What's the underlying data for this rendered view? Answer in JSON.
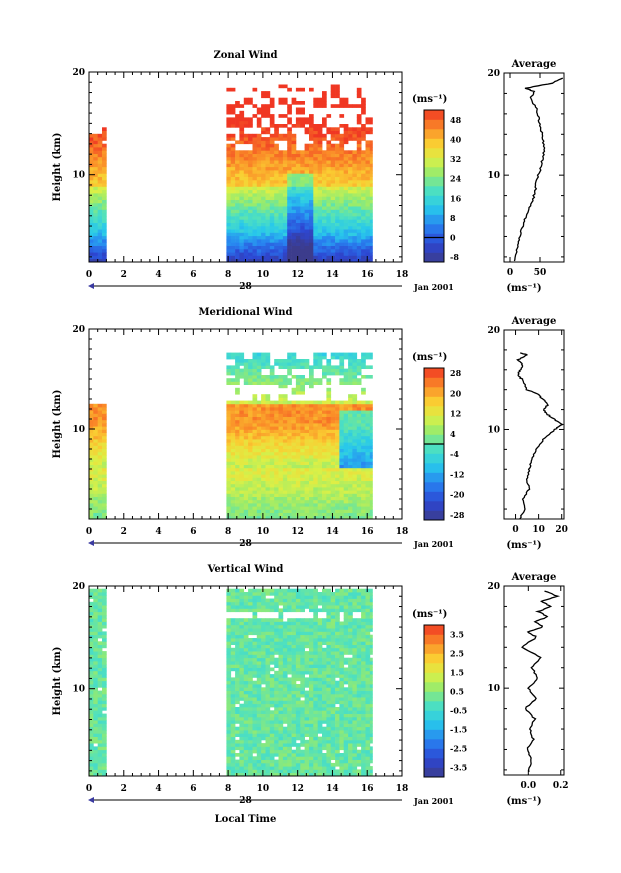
{
  "colorbar_unit": "(ms⁻¹)",
  "avg_unit": "(ms⁻¹)",
  "x_axis": {
    "date_label": "Jan 2001",
    "day_label": "28",
    "xlabel": "Local Time",
    "ticks": [
      0,
      2,
      4,
      6,
      8,
      10,
      12,
      14,
      16,
      18
    ]
  },
  "chart_data": [
    {
      "type": "heatmap",
      "title": "Zonal Wind",
      "xlabel": "",
      "ylabel": "Height (km)",
      "xlim": [
        0,
        18
      ],
      "ylim": [
        1.5,
        20
      ],
      "yticks": [
        10,
        20
      ],
      "data_blocks": [
        [
          0,
          1
        ],
        [
          7.9,
          16.3
        ]
      ],
      "colorbar": {
        "min": -10,
        "max": 52,
        "ticks": [
          "-8",
          "0",
          "8",
          "16",
          "24",
          "32",
          "40",
          "48"
        ],
        "tick_values": [
          -8,
          0,
          8,
          16,
          24,
          32,
          40,
          48
        ],
        "zero_line": 0
      },
      "average": {
        "title": "Average",
        "xlim": [
          -10,
          90
        ],
        "xticks": [
          "0",
          "50"
        ],
        "xtick_values": [
          0,
          50
        ],
        "profile": [
          [
            1.6,
            8
          ],
          [
            2.5,
            10
          ],
          [
            3.5,
            14
          ],
          [
            4.5,
            18
          ],
          [
            5.5,
            24
          ],
          [
            6.5,
            30
          ],
          [
            7.5,
            38
          ],
          [
            8.5,
            42
          ],
          [
            9.5,
            44
          ],
          [
            10.5,
            50
          ],
          [
            11.5,
            54
          ],
          [
            12.5,
            57
          ],
          [
            13.5,
            55
          ],
          [
            14.5,
            52
          ],
          [
            15.5,
            48
          ],
          [
            16.5,
            44
          ],
          [
            17.5,
            34
          ],
          [
            18.2,
            40
          ],
          [
            18.5,
            25
          ],
          [
            19.0,
            70
          ],
          [
            19.5,
            88
          ]
        ]
      }
    },
    {
      "type": "heatmap",
      "title": "Meridional Wind",
      "xlabel": "",
      "ylabel": "Height (km)",
      "xlim": [
        0,
        18
      ],
      "ylim": [
        1,
        20
      ],
      "yticks": [
        10,
        20
      ],
      "data_blocks": [
        [
          0,
          1
        ],
        [
          7.9,
          16.3
        ]
      ],
      "colorbar": {
        "min": -30,
        "max": 30,
        "ticks": [
          "-28",
          "-20",
          "-12",
          "-4",
          "4",
          "12",
          "20",
          "28"
        ],
        "tick_values": [
          -28,
          -20,
          -12,
          -4,
          4,
          12,
          20,
          28
        ],
        "zero_line": 0
      },
      "average": {
        "title": "Average",
        "xlim": [
          -5,
          21
        ],
        "xticks": [
          "0",
          "10",
          "20"
        ],
        "xtick_values": [
          0,
          10,
          20
        ],
        "profile": [
          [
            1.0,
            2
          ],
          [
            2.0,
            4
          ],
          [
            3.0,
            3
          ],
          [
            4.0,
            6
          ],
          [
            5.0,
            5
          ],
          [
            6.0,
            6
          ],
          [
            7.0,
            7
          ],
          [
            8.0,
            9
          ],
          [
            9.0,
            12
          ],
          [
            10.0,
            17
          ],
          [
            10.5,
            20
          ],
          [
            11.0,
            17
          ],
          [
            11.5,
            14
          ],
          [
            12.0,
            12
          ],
          [
            12.5,
            14
          ],
          [
            13.0,
            12
          ],
          [
            13.5,
            10
          ],
          [
            14.0,
            5
          ],
          [
            15.0,
            3
          ],
          [
            15.5,
            1
          ],
          [
            16.0,
            2
          ],
          [
            16.5,
            3
          ],
          [
            17.0,
            1
          ],
          [
            17.5,
            5
          ],
          [
            17.7,
            2
          ]
        ]
      }
    },
    {
      "type": "heatmap",
      "title": "Vertical Wind",
      "xlabel": "Local Time",
      "ylabel": "Height (km)",
      "xlim": [
        0,
        18
      ],
      "ylim": [
        1.5,
        20
      ],
      "yticks": [
        10,
        20
      ],
      "data_blocks": [
        [
          0,
          1
        ],
        [
          7.9,
          16.3
        ]
      ],
      "colorbar": {
        "min": -4,
        "max": 4,
        "ticks": [
          "-3.5",
          "-2.5",
          "-1.5",
          "-0.5",
          "0.5",
          "1.5",
          "2.5",
          "3.5"
        ],
        "tick_values": [
          -3.5,
          -2.5,
          -1.5,
          -0.5,
          0.5,
          1.5,
          2.5,
          3.5
        ],
        "zero_line": null
      },
      "average": {
        "title": "Average",
        "xlim": [
          -0.15,
          0.22
        ],
        "xticks": [
          "0.0",
          "0.2"
        ],
        "xtick_values": [
          0,
          0.2
        ],
        "profile": [
          [
            1.8,
            0.0
          ],
          [
            3.0,
            0.02
          ],
          [
            4.0,
            -0.01
          ],
          [
            5.0,
            0.03
          ],
          [
            6.0,
            0.01
          ],
          [
            7.0,
            0.04
          ],
          [
            8.0,
            -0.02
          ],
          [
            9.0,
            0.05
          ],
          [
            10.0,
            0.0
          ],
          [
            11.0,
            0.06
          ],
          [
            12.0,
            0.02
          ],
          [
            13.0,
            0.08
          ],
          [
            14.0,
            -0.04
          ],
          [
            15.0,
            0.05
          ],
          [
            15.5,
            0.0
          ],
          [
            16.0,
            0.09
          ],
          [
            16.5,
            0.04
          ],
          [
            17.0,
            0.12
          ],
          [
            17.5,
            0.06
          ],
          [
            18.0,
            0.14
          ],
          [
            18.5,
            0.08
          ],
          [
            19.0,
            0.18
          ],
          [
            19.5,
            0.1
          ]
        ]
      }
    }
  ]
}
